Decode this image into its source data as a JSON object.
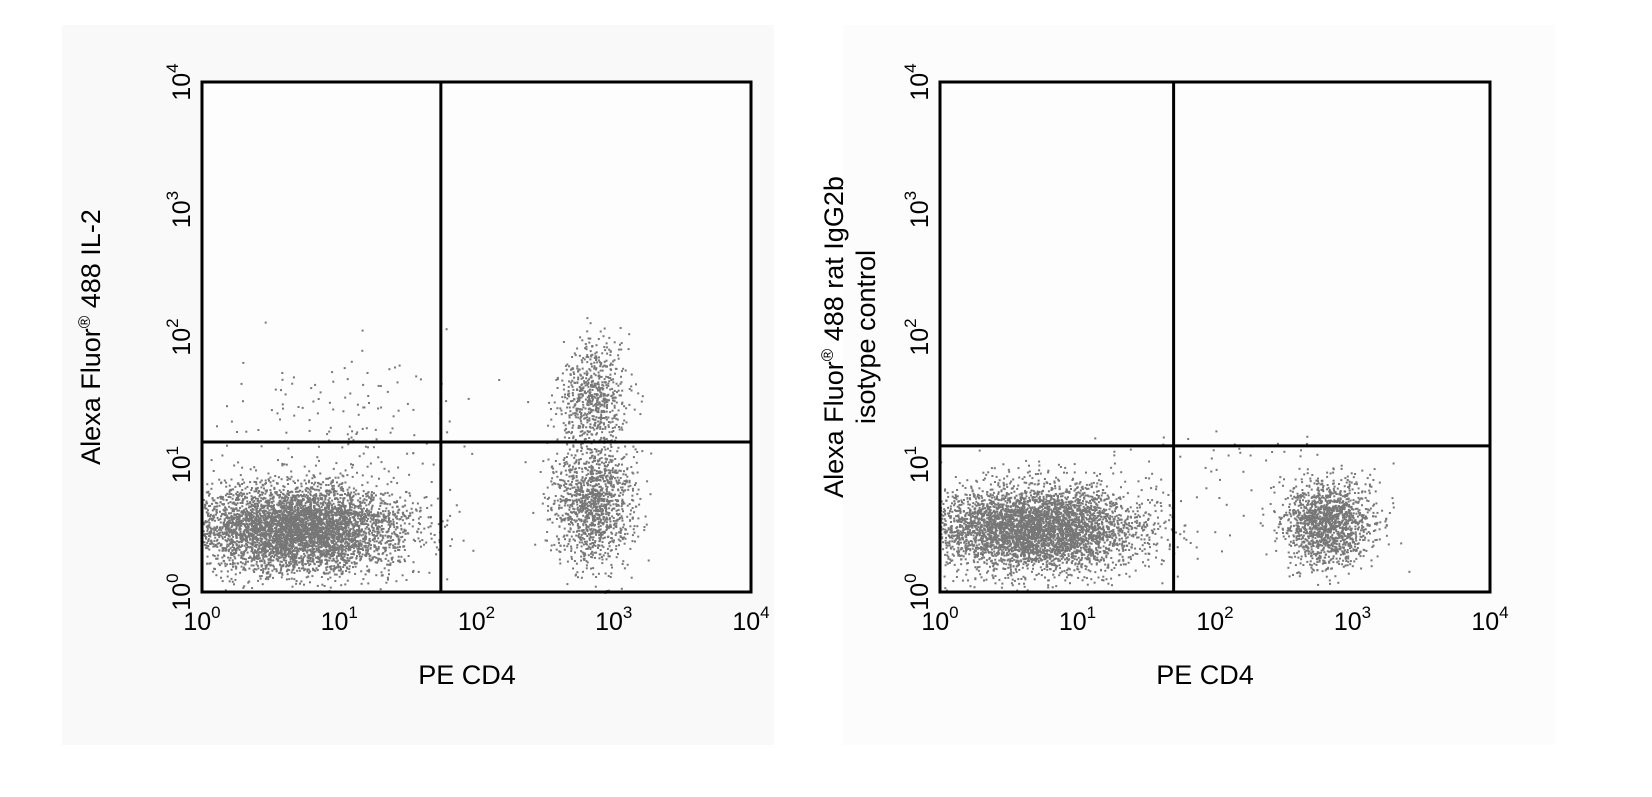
{
  "chart_data": [
    {
      "type": "scatter",
      "xlabel": "PE CD4",
      "ylabel_lines": [
        [
          "Alexa Fluor",
          "®",
          " 488 IL-2"
        ]
      ],
      "x_scale": "log",
      "y_scale": "log",
      "xlim": [
        1,
        10000
      ],
      "ylim": [
        1,
        10000
      ],
      "x_ticks": [
        {
          "base": "10",
          "exp": "0"
        },
        {
          "base": "10",
          "exp": "1"
        },
        {
          "base": "10",
          "exp": "2"
        },
        {
          "base": "10",
          "exp": "3"
        },
        {
          "base": "10",
          "exp": "4"
        }
      ],
      "y_ticks": [
        {
          "base": "10",
          "exp": "0"
        },
        {
          "base": "10",
          "exp": "1"
        },
        {
          "base": "10",
          "exp": "2"
        },
        {
          "base": "10",
          "exp": "3"
        },
        {
          "base": "10",
          "exp": "4"
        }
      ],
      "quadrant_gate": {
        "x": 55,
        "y": 15
      },
      "point_color": "#777777",
      "populations": [
        {
          "x_center": 5,
          "y_center": 3.2,
          "x_spread_decades": 0.38,
          "y_spread_decades": 0.17,
          "count": 5200
        },
        {
          "x_center": 700,
          "y_center": 5,
          "x_spread_decades": 0.15,
          "y_spread_decades": 0.25,
          "count": 1300
        },
        {
          "x_center": 700,
          "y_center": 35,
          "x_spread_decades": 0.12,
          "y_spread_decades": 0.22,
          "count": 650
        },
        {
          "x_center": 10,
          "y_center": 25,
          "x_spread_decades": 0.45,
          "y_spread_decades": 0.25,
          "count": 130
        }
      ]
    },
    {
      "type": "scatter",
      "xlabel": "PE CD4",
      "ylabel_lines": [
        [
          "Alexa Fluor",
          "®",
          " 488 rat IgG2b"
        ],
        [
          "isotype control"
        ]
      ],
      "x_scale": "log",
      "y_scale": "log",
      "xlim": [
        1,
        10000
      ],
      "ylim": [
        1,
        10000
      ],
      "x_ticks": [
        {
          "base": "10",
          "exp": "0"
        },
        {
          "base": "10",
          "exp": "1"
        },
        {
          "base": "10",
          "exp": "2"
        },
        {
          "base": "10",
          "exp": "3"
        },
        {
          "base": "10",
          "exp": "4"
        }
      ],
      "y_ticks": [
        {
          "base": "10",
          "exp": "0"
        },
        {
          "base": "10",
          "exp": "1"
        },
        {
          "base": "10",
          "exp": "2"
        },
        {
          "base": "10",
          "exp": "3"
        },
        {
          "base": "10",
          "exp": "4"
        }
      ],
      "quadrant_gate": {
        "x": 50,
        "y": 14
      },
      "point_color": "#777777",
      "populations": [
        {
          "x_center": 5,
          "y_center": 3.2,
          "x_spread_decades": 0.38,
          "y_spread_decades": 0.17,
          "count": 4600
        },
        {
          "x_center": 650,
          "y_center": 3.5,
          "x_spread_decades": 0.17,
          "y_spread_decades": 0.17,
          "count": 1500
        },
        {
          "x_center": 60,
          "y_center": 12,
          "x_spread_decades": 0.5,
          "y_spread_decades": 0.15,
          "count": 40
        }
      ]
    }
  ]
}
